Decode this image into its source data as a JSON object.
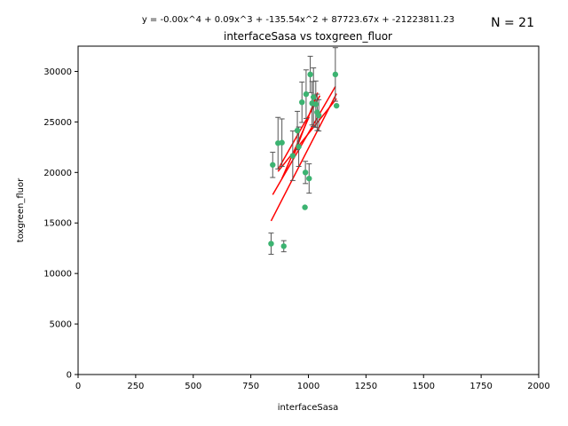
{
  "chart_data": {
    "type": "scatter",
    "title": "interfaceSasa vs toxgreen_fluor",
    "xlabel": "interfaceSasa",
    "ylabel": "toxgreen_fluor",
    "xlim": [
      0,
      2000
    ],
    "ylim": [
      0,
      32500
    ],
    "xticks": [
      0,
      250,
      500,
      750,
      1000,
      1250,
      1500,
      1750,
      2000
    ],
    "yticks": [
      0,
      5000,
      10000,
      15000,
      20000,
      25000,
      30000
    ],
    "equation": "y = -0.00x^4 + 0.09x^3 + -135.54x^2 + 87723.67x + -21223811.23",
    "n_label": "N = 21",
    "grid": false,
    "colors": {
      "points": "#3cb371",
      "errorbars": "#555555",
      "fit": "#ff0000"
    },
    "points": [
      {
        "x": 838,
        "y": 12950,
        "err": 1050
      },
      {
        "x": 845,
        "y": 20750,
        "err": 1250
      },
      {
        "x": 868,
        "y": 22900,
        "err": 2550
      },
      {
        "x": 885,
        "y": 22950,
        "err": 2350
      },
      {
        "x": 893,
        "y": 12700,
        "err": 550
      },
      {
        "x": 932,
        "y": 21650,
        "err": 2450
      },
      {
        "x": 952,
        "y": 24150,
        "err": 1900
      },
      {
        "x": 958,
        "y": 22550,
        "err": 1950
      },
      {
        "x": 972,
        "y": 26950,
        "err": 2000
      },
      {
        "x": 985,
        "y": 16550,
        "err": 0
      },
      {
        "x": 987,
        "y": 20000,
        "err": 1100
      },
      {
        "x": 990,
        "y": 27750,
        "err": 2400
      },
      {
        "x": 1003,
        "y": 19400,
        "err": 1450
      },
      {
        "x": 1008,
        "y": 29700,
        "err": 1800
      },
      {
        "x": 1016,
        "y": 26850,
        "err": 2150
      },
      {
        "x": 1022,
        "y": 27450,
        "err": 2900
      },
      {
        "x": 1032,
        "y": 26750,
        "err": 2300
      },
      {
        "x": 1038,
        "y": 25950,
        "err": 1800
      },
      {
        "x": 1045,
        "y": 25650,
        "err": 1550
      },
      {
        "x": 1117,
        "y": 29700,
        "err": 2650
      },
      {
        "x": 1122,
        "y": 26600,
        "err": 0
      }
    ],
    "fit_lines": [
      [
        [
          838,
          15200
        ],
        [
          1122,
          27800
        ]
      ],
      [
        [
          845,
          17800
        ],
        [
          1117,
          28500
        ]
      ],
      [
        [
          868,
          20300
        ],
        [
          1050,
          27600
        ]
      ],
      [
        [
          885,
          19400
        ],
        [
          1003,
          25500
        ]
      ],
      [
        [
          932,
          21400
        ],
        [
          1040,
          27900
        ]
      ],
      [
        [
          868,
          20100
        ],
        [
          1122,
          27300
        ]
      ]
    ]
  }
}
